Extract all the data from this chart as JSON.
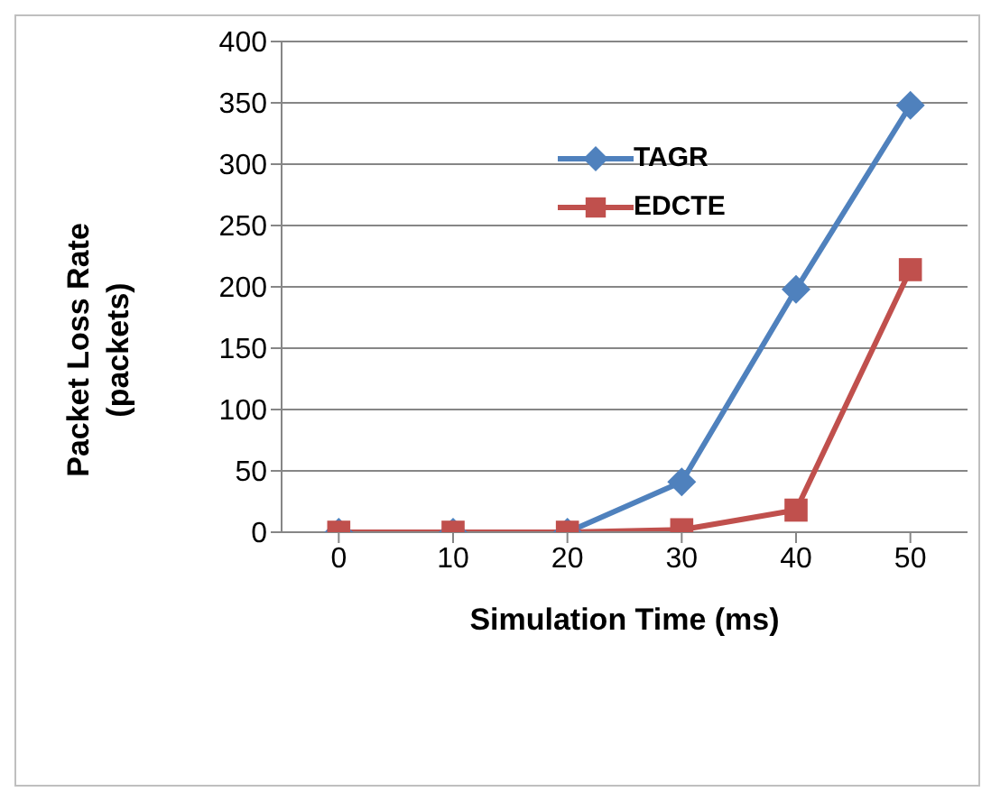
{
  "chart_data": {
    "type": "line",
    "xlabel": "Simulation Time (ms)",
    "ylabel": "Packet Loss Rate\n(packets)",
    "categories": [
      "0",
      "10",
      "20",
      "30",
      "40",
      "50"
    ],
    "series": [
      {
        "name": "TAGR",
        "color": "#4f81bd",
        "marker": "diamond",
        "values": [
          0,
          0,
          0,
          41,
          198,
          348
        ]
      },
      {
        "name": "EDCTE",
        "color": "#c0504d",
        "marker": "square",
        "values": [
          0,
          0,
          0,
          2,
          18,
          214
        ]
      }
    ],
    "ylim": [
      0,
      400
    ],
    "yticks": [
      0,
      50,
      100,
      150,
      200,
      250,
      300,
      350,
      400
    ],
    "grid": "y",
    "legend": "top",
    "line_style": "solid"
  }
}
